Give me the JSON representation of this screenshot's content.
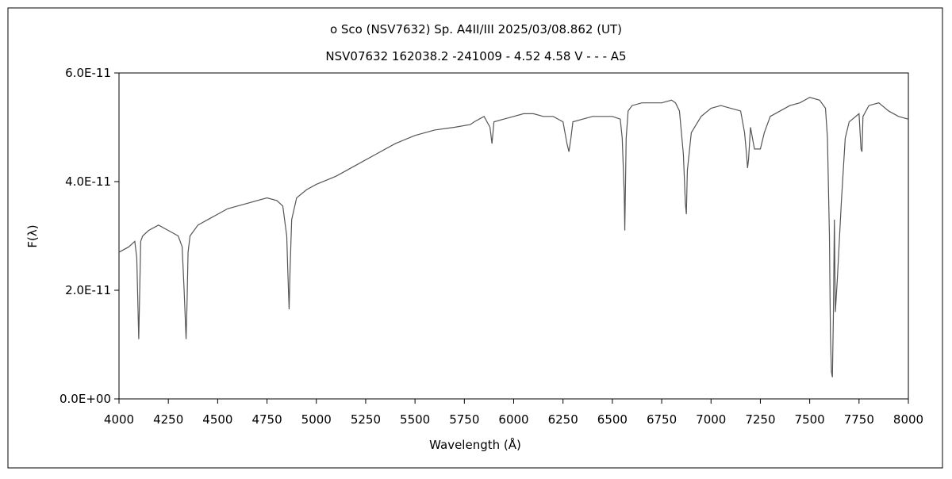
{
  "chart_data": {
    "type": "line",
    "title": "ο Sco (NSV7632)   Sp. A4II/III   2025/03/08.862 (UT)",
    "subtitle": "NSV07632 162038.2 -241009 - 4.52 4.58 V - - - A5",
    "xlabel": "Wavelength (Å)",
    "ylabel": "F(λ)",
    "xlim": [
      4000,
      8000
    ],
    "ylim": [
      0,
      6e-11
    ],
    "x_ticks": [
      4000,
      4250,
      4500,
      4750,
      5000,
      5250,
      5500,
      5750,
      6000,
      6250,
      6500,
      6750,
      7000,
      7250,
      7500,
      7750,
      8000
    ],
    "x_tick_labels": [
      "4000",
      "4250",
      "4500",
      "4750",
      "5000",
      "5250",
      "5500",
      "5750",
      "6000",
      "6250",
      "6500",
      "6750",
      "7000",
      "7250",
      "7500",
      "7750",
      "8000"
    ],
    "y_ticks": [
      0,
      2e-11,
      4e-11,
      6e-11
    ],
    "y_tick_labels": [
      "0.0E+00",
      "2.0E-11",
      "4.0E-11",
      "6.0E-11"
    ],
    "grid": false,
    "legend": "none",
    "line_color": "#555555",
    "series": [
      {
        "x": [
          4000,
          4050,
          4080,
          4090,
          4100,
          4105,
          4110,
          4120,
          4150,
          4200,
          4250,
          4300,
          4320,
          4330,
          4340,
          4345,
          4350,
          4360,
          4380,
          4400,
          4450,
          4500,
          4550,
          4600,
          4650,
          4700,
          4750,
          4800,
          4830,
          4850,
          4855,
          4862,
          4867,
          4875,
          4900,
          4950,
          5000,
          5100,
          5200,
          5300,
          5400,
          5500,
          5600,
          5700,
          5780,
          5800,
          5850,
          5880,
          5890,
          5895,
          5900,
          5950,
          6000,
          6050,
          6100,
          6150,
          6200,
          6250,
          6270,
          6280,
          6290,
          6300,
          6350,
          6400,
          6450,
          6500,
          6540,
          6550,
          6560,
          6563,
          6566,
          6570,
          6580,
          6600,
          6650,
          6700,
          6750,
          6800,
          6820,
          6840,
          6860,
          6870,
          6875,
          6880,
          6900,
          6950,
          7000,
          7050,
          7100,
          7150,
          7170,
          7180,
          7185,
          7190,
          7200,
          7220,
          7250,
          7270,
          7290,
          7300,
          7350,
          7400,
          7450,
          7500,
          7550,
          7580,
          7590,
          7600,
          7605,
          7610,
          7615,
          7620,
          7625,
          7630,
          7640,
          7650,
          7660,
          7670,
          7680,
          7700,
          7750,
          7760,
          7765,
          7770,
          7800,
          7850,
          7900,
          7950,
          8000
        ],
        "y": [
          2.7e-11,
          2.8e-11,
          2.9e-11,
          2.6e-11,
          1.1e-11,
          2e-11,
          2.9e-11,
          3e-11,
          3.1e-11,
          3.2e-11,
          3.1e-11,
          3e-11,
          2.8e-11,
          2e-11,
          1.1e-11,
          1.8e-11,
          2.7e-11,
          3e-11,
          3.1e-11,
          3.2e-11,
          3.3e-11,
          3.4e-11,
          3.5e-11,
          3.55e-11,
          3.6e-11,
          3.65e-11,
          3.7e-11,
          3.65e-11,
          3.55e-11,
          3e-11,
          2.4e-11,
          1.65e-11,
          2.4e-11,
          3.3e-11,
          3.7e-11,
          3.85e-11,
          3.95e-11,
          4.1e-11,
          4.3e-11,
          4.5e-11,
          4.7e-11,
          4.85e-11,
          4.95e-11,
          5e-11,
          5.05e-11,
          5.1e-11,
          5.2e-11,
          5e-11,
          4.7e-11,
          4.9e-11,
          5.1e-11,
          5.15e-11,
          5.2e-11,
          5.25e-11,
          5.25e-11,
          5.2e-11,
          5.2e-11,
          5.1e-11,
          4.7e-11,
          4.55e-11,
          4.8e-11,
          5.1e-11,
          5.15e-11,
          5.2e-11,
          5.2e-11,
          5.2e-11,
          5.15e-11,
          4.8e-11,
          3.8e-11,
          3.1e-11,
          3.8e-11,
          4.8e-11,
          5.3e-11,
          5.4e-11,
          5.45e-11,
          5.45e-11,
          5.45e-11,
          5.5e-11,
          5.45e-11,
          5.3e-11,
          4.5e-11,
          3.6e-11,
          3.4e-11,
          4.2e-11,
          4.9e-11,
          5.2e-11,
          5.35e-11,
          5.4e-11,
          5.35e-11,
          5.3e-11,
          4.9e-11,
          4.5e-11,
          4.25e-11,
          4.4e-11,
          5e-11,
          4.6e-11,
          4.6e-11,
          4.9e-11,
          5.1e-11,
          5.2e-11,
          5.3e-11,
          5.4e-11,
          5.45e-11,
          5.55e-11,
          5.5e-11,
          5.35e-11,
          4.8e-11,
          3e-11,
          1.2e-11,
          5e-12,
          4e-12,
          1.5e-11,
          3.3e-11,
          1.6e-11,
          2.2e-11,
          2.9e-11,
          3.6e-11,
          4.2e-11,
          4.8e-11,
          5.1e-11,
          5.25e-11,
          4.6e-11,
          4.55e-11,
          5.2e-11,
          5.4e-11,
          5.45e-11,
          5.3e-11,
          5.2e-11,
          5.15e-11
        ]
      }
    ]
  }
}
